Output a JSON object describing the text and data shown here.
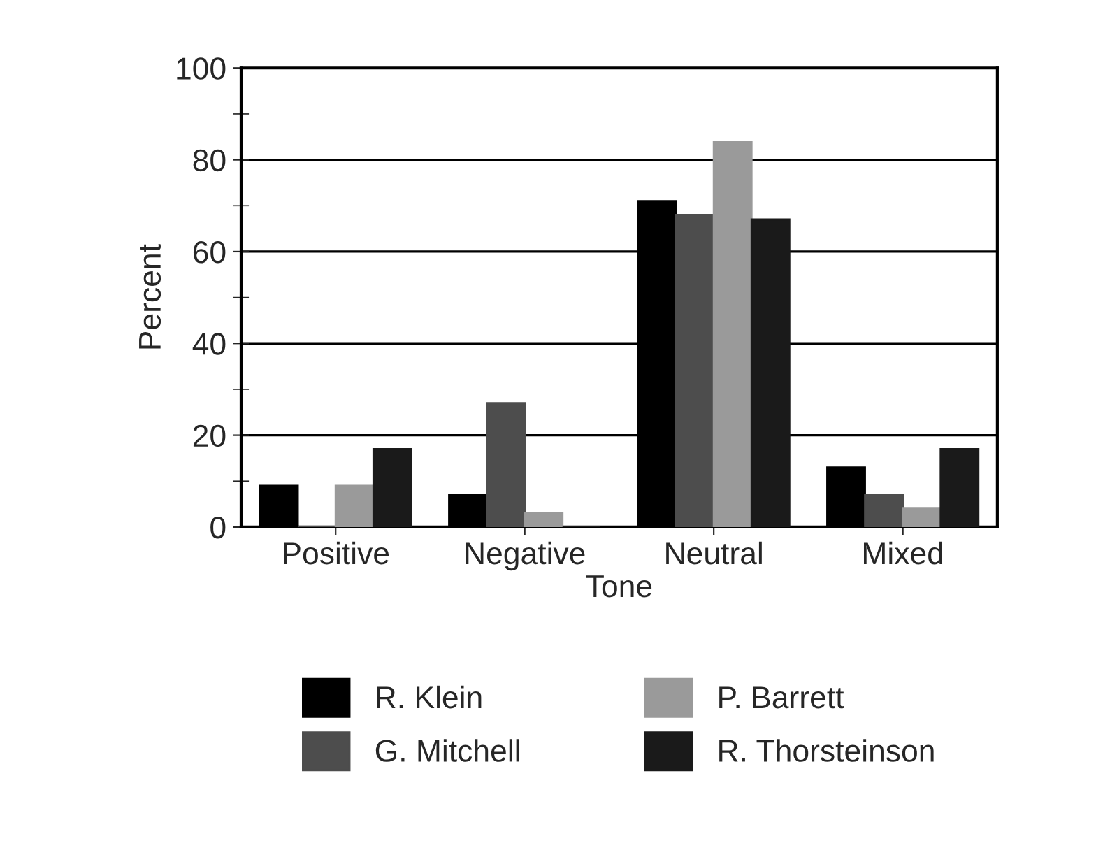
{
  "chart_data": {
    "type": "bar",
    "xlabel": "Tone",
    "ylabel": "Percent",
    "categories": [
      "Positive",
      "Negative",
      "Neutral",
      "Mixed"
    ],
    "series": [
      {
        "name": "R. Klein",
        "color": "#000000",
        "values": [
          9,
          7,
          71,
          13
        ]
      },
      {
        "name": "G. Mitchell",
        "color": "#4d4d4d",
        "values": [
          0,
          27,
          68,
          7
        ]
      },
      {
        "name": "P. Barrett",
        "color": "#9a9a9a",
        "values": [
          9,
          3,
          84,
          4
        ]
      },
      {
        "name": "R. Thorsteinson",
        "color": "#1a1a1a",
        "values": [
          17,
          0,
          67,
          17
        ]
      }
    ],
    "ylim": [
      0,
      100
    ],
    "yticks": [
      0,
      20,
      40,
      60,
      80,
      100
    ],
    "grid": "y",
    "legend": "bottom"
  }
}
